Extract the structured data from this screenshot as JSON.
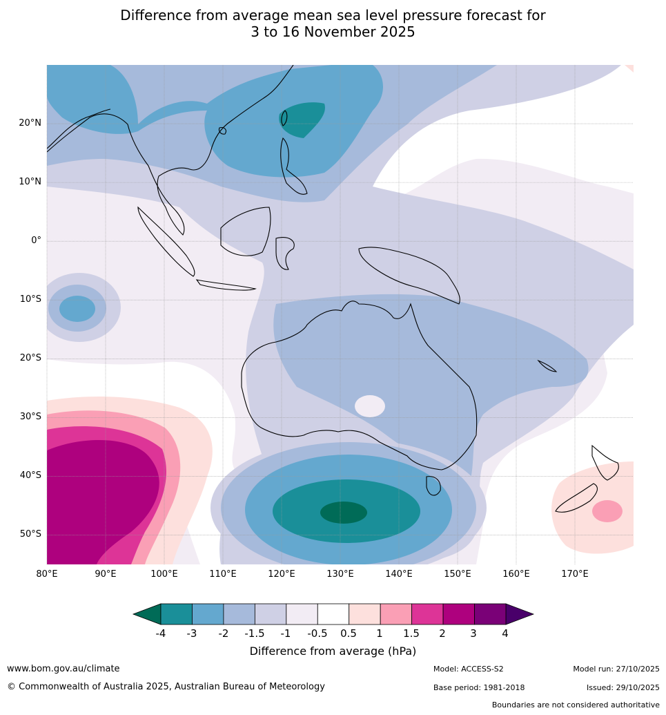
{
  "header": {
    "title_line1": "Difference from average mean sea level pressure forecast for",
    "title_line2": "3 to 16 November 2025"
  },
  "map": {
    "lat_labels": [
      "20°N",
      "10°N",
      "0°",
      "10°S",
      "20°S",
      "30°S",
      "40°S",
      "50°S"
    ],
    "lon_labels": [
      "80°E",
      "90°E",
      "100°E",
      "110°E",
      "120°E",
      "130°E",
      "140°E",
      "150°E",
      "160°E",
      "170°E"
    ],
    "extent": {
      "lon_min": 80,
      "lon_max": 180,
      "lat_min": -55,
      "lat_max": 30
    }
  },
  "colorbar": {
    "tick_labels": [
      "-4",
      "-3",
      "-2",
      "-1.5",
      "-1",
      "-0.5",
      "0.5",
      "1",
      "1.5",
      "2",
      "3",
      "4"
    ],
    "colors": [
      "#006b57",
      "#1a8f99",
      "#64a8cf",
      "#a6badb",
      "#cfd0e5",
      "#f2ecf4",
      "#ffffff",
      "#fde0dd",
      "#fa9fb5",
      "#dd3497",
      "#ae017e",
      "#7a0177",
      "#49006a"
    ],
    "label": "Difference from average (hPa)"
  },
  "footer": {
    "website": "www.bom.gov.au/climate",
    "copyright": "© Commonwealth of Australia 2025, Australian Bureau of Meteorology",
    "model": "Model: ACCESS-S2",
    "base_period": "Base period: 1981-2018",
    "model_run": "Model run: 27/10/2025",
    "issued": "Issued: 29/10/2025",
    "disclaimer": "Boundaries are not considered authoritative"
  }
}
